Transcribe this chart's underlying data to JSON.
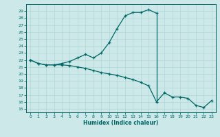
{
  "xlabel": "Humidex (Indice chaleur)",
  "bg_color": "#cce8e8",
  "line_color": "#006666",
  "grid_color": "#b0d8d8",
  "xlim": [
    -0.5,
    23.5
  ],
  "ylim": [
    14.5,
    30.0
  ],
  "xticks": [
    0,
    1,
    2,
    3,
    4,
    5,
    6,
    7,
    8,
    9,
    10,
    11,
    12,
    13,
    14,
    15,
    16,
    17,
    18,
    19,
    20,
    21,
    22,
    23
  ],
  "yticks": [
    15,
    16,
    17,
    18,
    19,
    20,
    21,
    22,
    23,
    24,
    25,
    26,
    27,
    28,
    29
  ],
  "upper_x": [
    0,
    1,
    2,
    3,
    4,
    5,
    6,
    7,
    8,
    9,
    10,
    11,
    12,
    13,
    14,
    15,
    16
  ],
  "upper_y": [
    22.0,
    21.5,
    21.3,
    21.3,
    21.5,
    21.8,
    22.3,
    22.8,
    22.3,
    23.0,
    24.5,
    26.5,
    28.3,
    28.8,
    28.8,
    29.2,
    28.7
  ],
  "lower_x": [
    0,
    1,
    2,
    3,
    4,
    5,
    6,
    7,
    8,
    9,
    10,
    11,
    12,
    13,
    14,
    15,
    16,
    17,
    18,
    19,
    20,
    21,
    22,
    23
  ],
  "lower_y": [
    22.0,
    21.5,
    21.3,
    21.3,
    21.3,
    21.2,
    21.0,
    20.8,
    20.5,
    20.2,
    20.0,
    19.8,
    19.5,
    19.2,
    18.8,
    18.3,
    16.0,
    17.3,
    16.7,
    16.7,
    16.5,
    15.5,
    15.2,
    16.2
  ]
}
